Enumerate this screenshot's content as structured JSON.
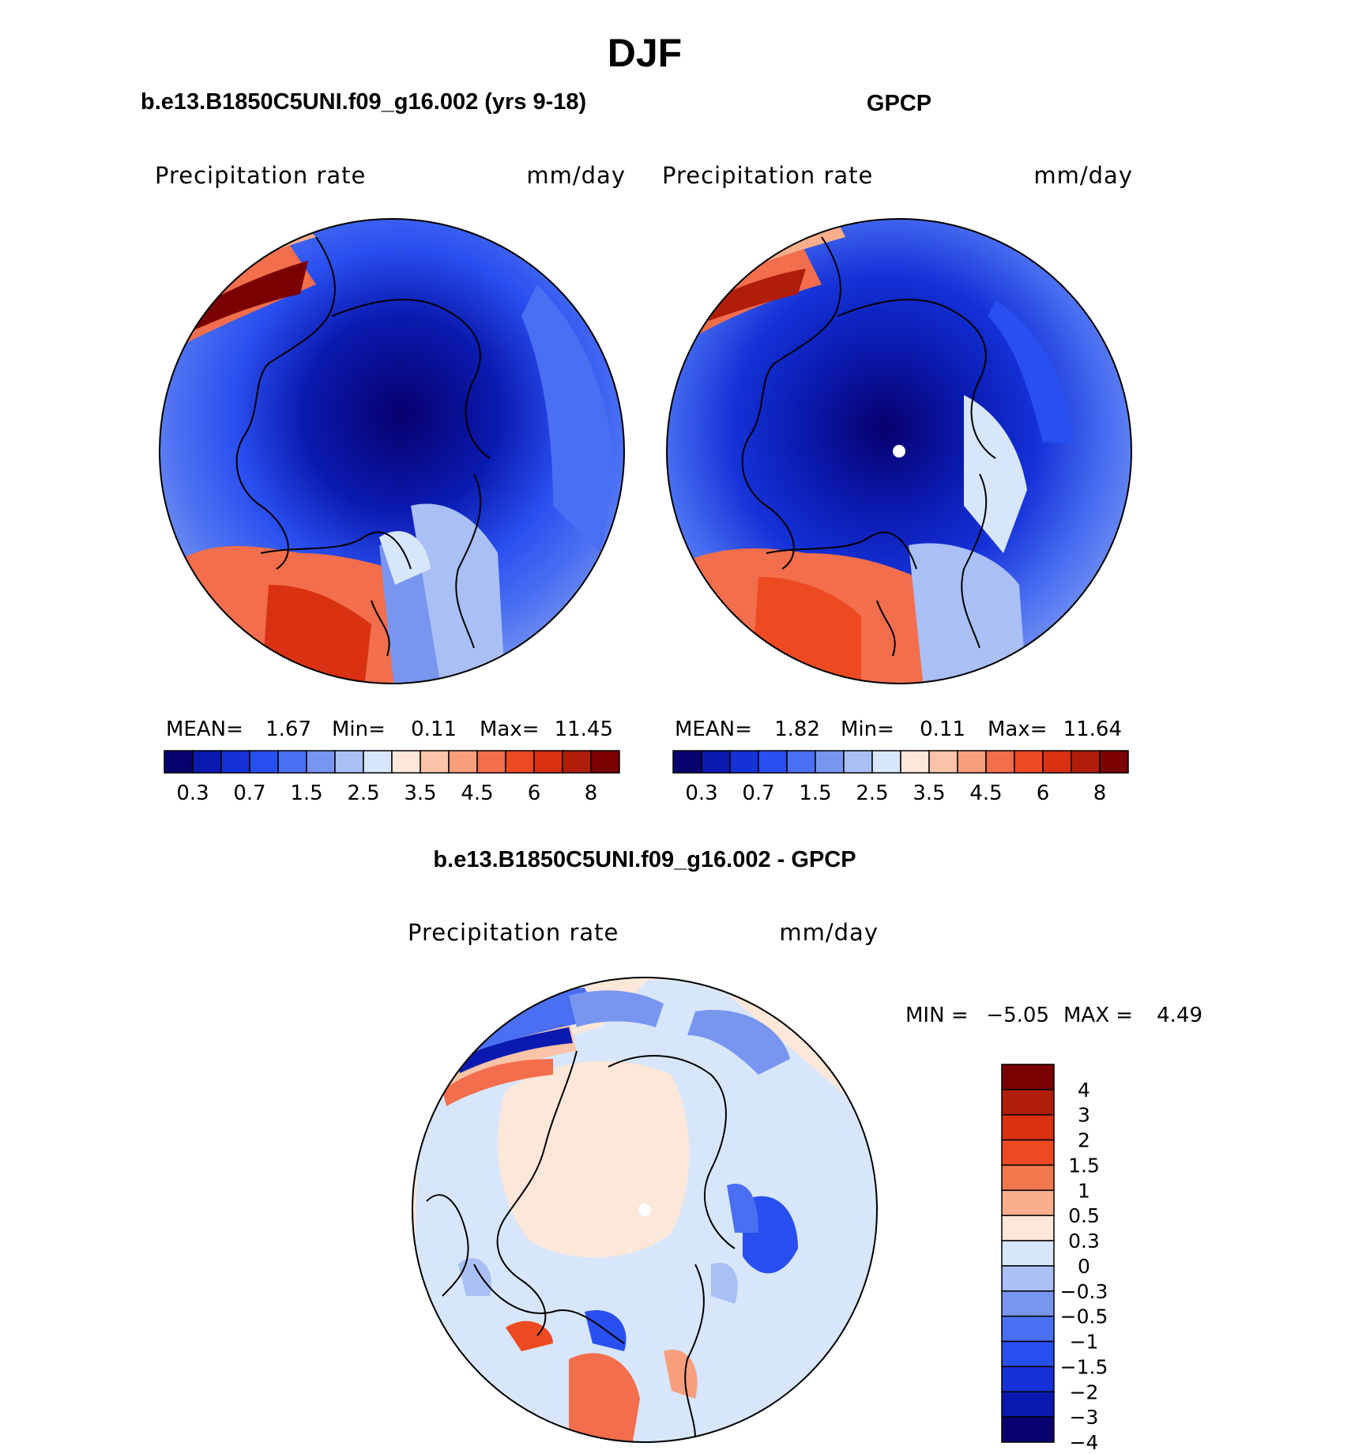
{
  "page_title": "DJF",
  "panels": [
    {
      "title": "b.e13.B1850C5UNI.f09_g16.002 (yrs 9-18)",
      "left_label": "Precipitation  rate",
      "right_label": "mm/day",
      "stats": {
        "mean_label": "MEAN=",
        "mean": "1.67",
        "min_label": "Min=",
        "min": "0.11",
        "max_label": "Max=",
        "max": "11.45"
      }
    },
    {
      "title": "GPCP",
      "left_label": "Precipitation  rate",
      "right_label": "mm/day",
      "stats": {
        "mean_label": "MEAN=",
        "mean": "1.82",
        "min_label": "Min=",
        "min": "0.11",
        "max_label": "Max=",
        "max": "11.64"
      }
    },
    {
      "title": "b.e13.B1850C5UNI.f09_g16.002 - GPCP",
      "left_label": "Precipitation  rate",
      "right_label": "mm/day",
      "stats": {
        "min_label": "MIN =",
        "min": "−5.05",
        "max_label": "MAX =",
        "max": "4.49"
      }
    }
  ],
  "chart_data": [
    {
      "type": "heatmap",
      "projection": "north-polar-stereographic",
      "colorbar_orientation": "horizontal",
      "colorbar_tick_labels": [
        "0.3",
        "0.7",
        "1.5",
        "2.5",
        "3.5",
        "4.5",
        "6",
        "8"
      ],
      "colors": [
        "#08006e",
        "#0a1ab0",
        "#1532d8",
        "#2a4ff0",
        "#4a6ff2",
        "#7896f0",
        "#a9bff5",
        "#d7e6fb",
        "#fde7d8",
        "#fbc4a8",
        "#f79e7c",
        "#f26e4c",
        "#ee4a22",
        "#d93111",
        "#b01e0a",
        "#7a0003"
      ]
    },
    {
      "type": "heatmap",
      "projection": "north-polar-stereographic",
      "colorbar_orientation": "horizontal",
      "colorbar_tick_labels": [
        "0.3",
        "0.7",
        "1.5",
        "2.5",
        "3.5",
        "4.5",
        "6",
        "8"
      ],
      "colors": [
        "#08006e",
        "#0a1ab0",
        "#1532d8",
        "#2a4ff0",
        "#4a6ff2",
        "#7896f0",
        "#a9bff5",
        "#d7e6fb",
        "#fde7d8",
        "#fbc4a8",
        "#f79e7c",
        "#f26e4c",
        "#ee4a22",
        "#d93111",
        "#b01e0a",
        "#7a0003"
      ]
    },
    {
      "type": "heatmap",
      "projection": "north-polar-stereographic",
      "colorbar_orientation": "vertical",
      "colorbar_tick_labels": [
        "4",
        "3",
        "2",
        "1.5",
        "1",
        "0.5",
        "0.3",
        "0",
        "−0.3",
        "−0.5",
        "−1",
        "−1.5",
        "−2",
        "−3",
        "−4"
      ],
      "colors": [
        "#7a0003",
        "#b01e0a",
        "#d93111",
        "#ee4a22",
        "#f2794e",
        "#f9ae8c",
        "#fde7d8",
        "#d7e6fb",
        "#a9bff5",
        "#7896f0",
        "#4a6ff2",
        "#2a4ff0",
        "#1532d8",
        "#0a1ab0",
        "#08006e"
      ]
    }
  ]
}
